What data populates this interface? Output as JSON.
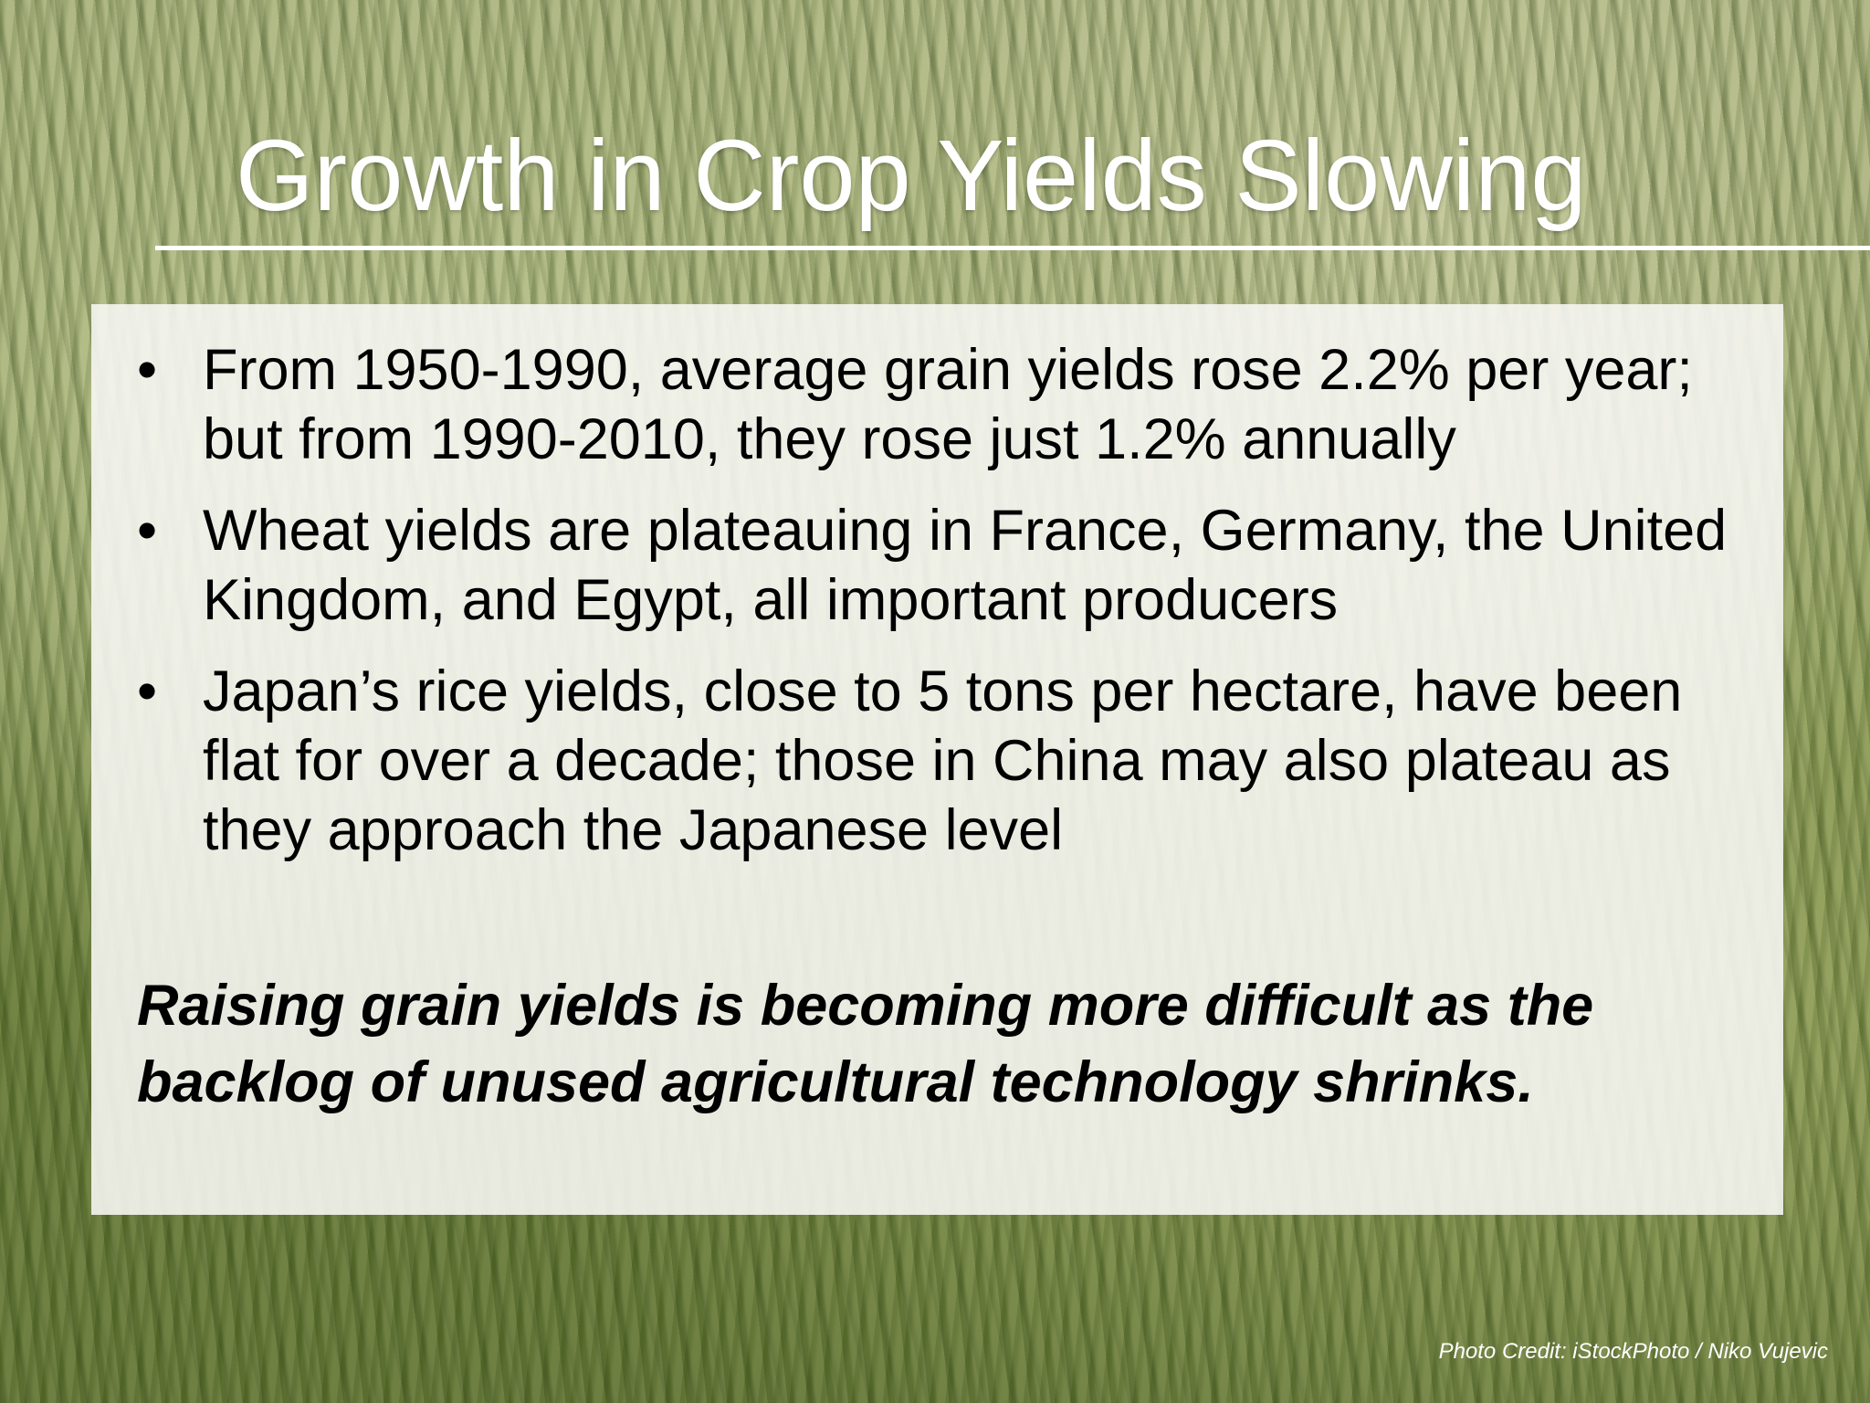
{
  "slide": {
    "title": "Growth in Crop Yields Slowing",
    "bullets": [
      "From 1950-1990, average grain yields rose 2.2% per year; but from 1990-2010, they rose just 1.2% annually",
      "Wheat yields are plateauing in France, Germany, the United Kingdom, and Egypt, all important producers",
      "Japan’s rice yields, close to 5 tons per hectare, have been flat for over a decade; those in China may also plateau as they approach the Japanese level"
    ],
    "conclusion": "Raising grain yields is becoming more difficult as the backlog of unused agricultural technology shrinks.",
    "photo_credit": "Photo Credit: iStockPhoto / Niko Vujevic"
  }
}
